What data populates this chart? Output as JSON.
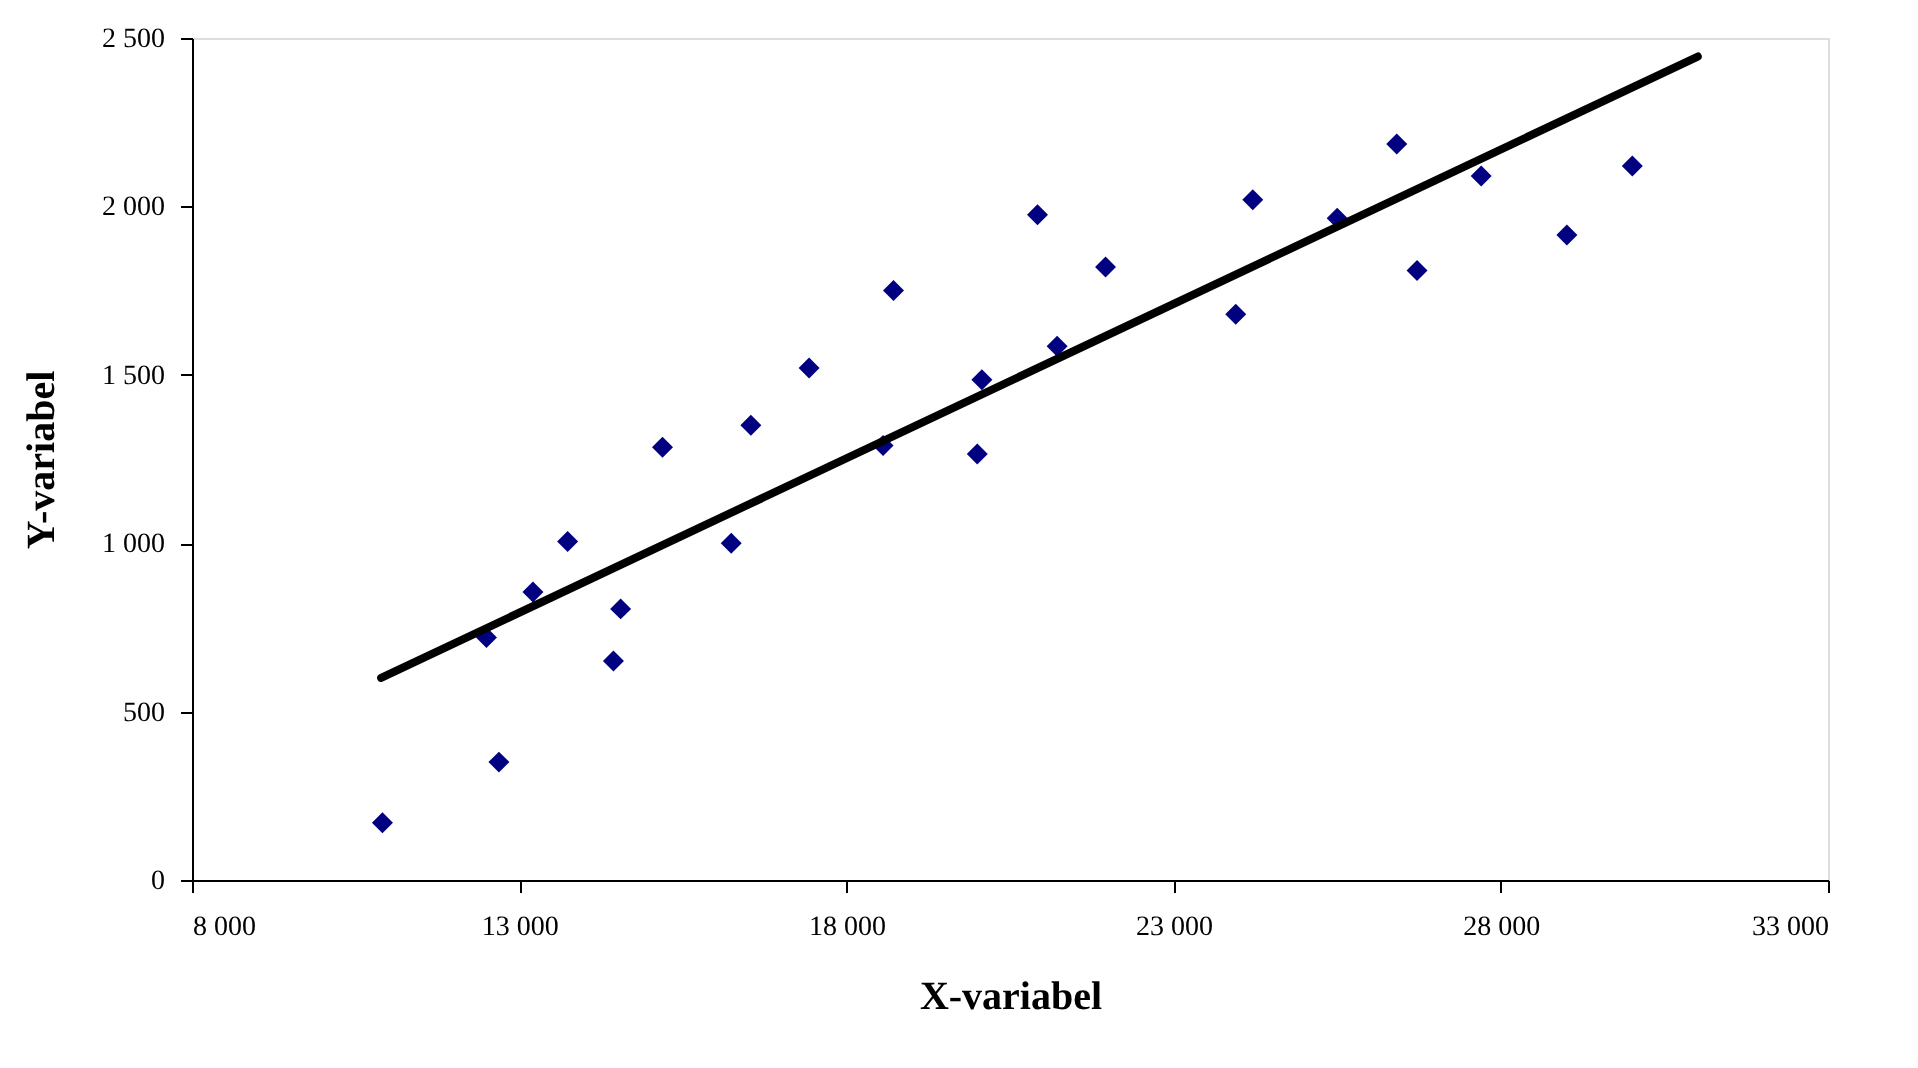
{
  "chart_data": {
    "type": "scatter",
    "xlabel": "X-variabel",
    "ylabel": "Y-variabel",
    "xlim": [
      8000,
      33000
    ],
    "ylim": [
      0,
      2500
    ],
    "xticks": [
      {
        "value": 8000,
        "label": "8 000"
      },
      {
        "value": 13000,
        "label": "13 000"
      },
      {
        "value": 18000,
        "label": "18 000"
      },
      {
        "value": 23000,
        "label": "23 000"
      },
      {
        "value": 28000,
        "label": "28 000"
      },
      {
        "value": 33000,
        "label": "33 000"
      }
    ],
    "yticks": [
      0,
      500,
      {
        "value": 1000,
        "label": "1 000"
      },
      {
        "value": 1500,
        "label": "1 500"
      },
      {
        "value": 2000,
        "label": "2 000"
      },
      {
        "value": 2500,
        "label": "2 500"
      }
    ],
    "series": [
      {
        "color": "#000080",
        "marker": "diamond",
        "x": [
          10910,
          12500,
          12690,
          13210,
          13740,
          14440,
          14550,
          15190,
          16240,
          16540,
          17430,
          18560,
          18720,
          20000,
          20070,
          20920,
          21220,
          21960,
          23950,
          24210,
          25500,
          26410,
          26720,
          27700,
          29010,
          30010
        ],
        "values": [
          170,
          720,
          350,
          855,
          1005,
          650,
          805,
          1285,
          1000,
          1350,
          1520,
          1290,
          1750,
          1265,
          1485,
          1975,
          1585,
          1820,
          1680,
          2020,
          1965,
          2185,
          1810,
          2090,
          1915,
          2120
        ]
      },
      {
        "type": "line",
        "color": "#000000",
        "line_style": "solid",
        "marker": "none",
        "x": [
          10890,
          31010
        ],
        "values": [
          600,
          2445
        ]
      }
    ]
  }
}
